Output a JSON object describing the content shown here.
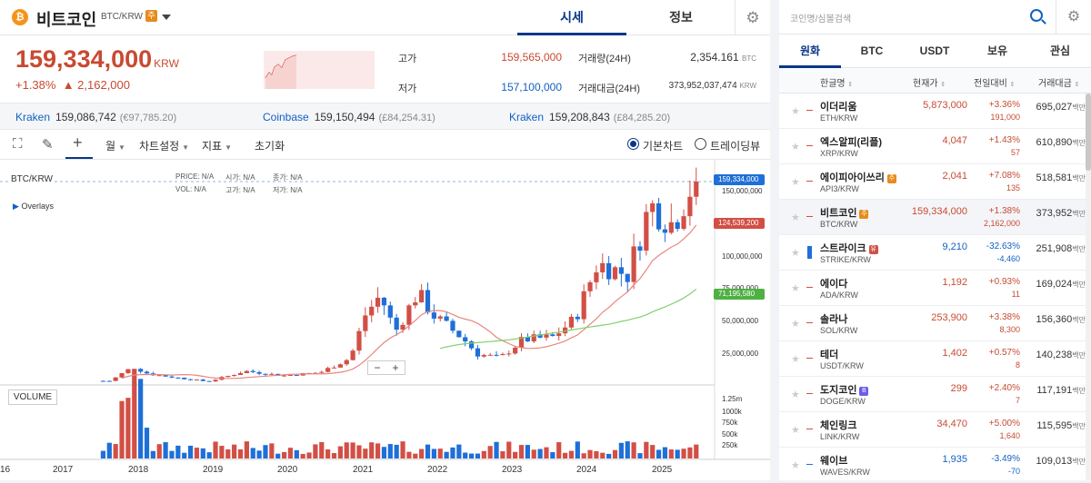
{
  "header": {
    "coin_icon_glyph": "₿",
    "coin_name": "비트코인",
    "symbol": "BTC/KRW",
    "warning_badge": "주",
    "tabs": [
      "시세",
      "정보"
    ]
  },
  "price": {
    "current": "159,334,000",
    "unit": "KRW",
    "change_rate": "+1.38%",
    "change_amount": "▲ 2,162,000",
    "high_label": "고가",
    "high": "159,565,000",
    "low_label": "저가",
    "low": "157,100,000",
    "volume_label": "거래량(24H)",
    "volume": "2,354.161",
    "volume_unit": "BTC",
    "trade_value_label": "거래대금(24H)",
    "trade_value": "373,952,037,474",
    "trade_value_unit": "KRW"
  },
  "exchanges": [
    {
      "name": "Kraken",
      "krw": "159,086,742",
      "ref": "(€97,785.20)"
    },
    {
      "name": "Coinbase",
      "krw": "159,150,494",
      "ref": "(£84,254.31)"
    },
    {
      "name": "Kraken",
      "krw": "159,208,843",
      "ref": "(£84,285.20)"
    }
  ],
  "toolbar": {
    "interval": "월",
    "chart_settings": "차트설정",
    "indicators": "지표",
    "reset": "초기화",
    "basic_chart": "기본차트",
    "tradingview": "트레이딩뷰"
  },
  "chart": {
    "symbol_label": "BTC/KRW",
    "overlays_label": "Overlays",
    "ohlc": {
      "price_label": "PRICE:",
      "price": "N/A",
      "open_label": "시가:",
      "open": "N/A",
      "close_label": "종가:",
      "close": "N/A",
      "vol_label": "VOL:",
      "vol": "N/A",
      "high_label": "고가:",
      "high": "N/A",
      "low_label": "저가:",
      "low": "N/A"
    },
    "volume_label": "VOLUME",
    "zoom_out": "−",
    "zoom_in": "+",
    "last_price_tag": "159,334,000",
    "ma1_tag": "124,539,200",
    "ma2_tag": "71,195,580",
    "colors": {
      "up": "#d24f45",
      "down": "#1e6fd8",
      "ma1": "#e8867e",
      "ma2": "#7fd26e",
      "last": "#1e6fd8"
    }
  },
  "chart_data": {
    "type": "candlestick",
    "title": "BTC/KRW",
    "ylim": [
      0,
      175000000
    ],
    "y_ticks": [
      "150,000,000",
      "100,000,000",
      "75,000,000",
      "50,000,000",
      "25,000,000"
    ],
    "volume_ticks": [
      "1.25m",
      "1000k",
      "750k",
      "500k",
      "250k"
    ],
    "x_ticks": [
      "16",
      "2017",
      "2018",
      "2019",
      "2020",
      "2021",
      "2022",
      "2023",
      "2024",
      "2025"
    ],
    "series_close": [
      {
        "x": "2017.7",
        "y": 4500000
      },
      {
        "x": "2017.9",
        "y": 12000000
      },
      {
        "x": "2018.0",
        "y": 15000000
      },
      {
        "x": "2018.2",
        "y": 10000000
      },
      {
        "x": "2018.5",
        "y": 7500000
      },
      {
        "x": "2019.0",
        "y": 4000000
      },
      {
        "x": "2019.5",
        "y": 12000000
      },
      {
        "x": "2020.0",
        "y": 8500000
      },
      {
        "x": "2020.5",
        "y": 11000000
      },
      {
        "x": "2020.9",
        "y": 22000000
      },
      {
        "x": "2021.1",
        "y": 55000000
      },
      {
        "x": "2021.3",
        "y": 70000000
      },
      {
        "x": "2021.5",
        "y": 42000000
      },
      {
        "x": "2021.8",
        "y": 72000000
      },
      {
        "x": "2022.0",
        "y": 55000000
      },
      {
        "x": "2022.4",
        "y": 37000000
      },
      {
        "x": "2022.6",
        "y": 25000000
      },
      {
        "x": "2022.9",
        "y": 22000000
      },
      {
        "x": "2023.2",
        "y": 36000000
      },
      {
        "x": "2023.6",
        "y": 38000000
      },
      {
        "x": "2023.9",
        "y": 52000000
      },
      {
        "x": "2024.2",
        "y": 95000000
      },
      {
        "x": "2024.6",
        "y": 86000000
      },
      {
        "x": "2024.9",
        "y": 140000000
      },
      {
        "x": "2025.2",
        "y": 125000000
      },
      {
        "x": "2025.5",
        "y": 159334000
      }
    ]
  },
  "market": {
    "search_placeholder": "코인명/심볼검색",
    "tabs": [
      "원화",
      "BTC",
      "USDT",
      "보유",
      "관심"
    ],
    "columns": [
      "한글명",
      "현재가",
      "전일대비",
      "거래대금"
    ],
    "rows": [
      {
        "name": "이더리움",
        "sym": "ETH/KRW",
        "badge": "",
        "price": "5,873,000",
        "rate": "+3.36%",
        "diff": "191,000",
        "vol": "695,027",
        "unit": "백만",
        "dir": "up"
      },
      {
        "name": "엑스알피(리플)",
        "sym": "XRP/KRW",
        "badge": "",
        "price": "4,047",
        "rate": "+1.43%",
        "diff": "57",
        "vol": "610,890",
        "unit": "백만",
        "dir": "up"
      },
      {
        "name": "에이피아이쓰리",
        "sym": "API3/KRW",
        "badge": "주",
        "price": "2,041",
        "rate": "+7.08%",
        "diff": "135",
        "vol": "518,581",
        "unit": "백만",
        "dir": "up"
      },
      {
        "name": "비트코인",
        "sym": "BTC/KRW",
        "badge": "주",
        "price": "159,334,000",
        "rate": "+1.38%",
        "diff": "2,162,000",
        "vol": "373,952",
        "unit": "백만",
        "dir": "up"
      },
      {
        "name": "스트라이크",
        "sym": "STRIKE/KRW",
        "badge": "유",
        "price": "9,210",
        "rate": "-32.63%",
        "diff": "-4,460",
        "vol": "251,908",
        "unit": "백만",
        "dir": "down"
      },
      {
        "name": "에이다",
        "sym": "ADA/KRW",
        "badge": "",
        "price": "1,192",
        "rate": "+0.93%",
        "diff": "11",
        "vol": "169,024",
        "unit": "백만",
        "dir": "up"
      },
      {
        "name": "솔라나",
        "sym": "SOL/KRW",
        "badge": "",
        "price": "253,900",
        "rate": "+3.38%",
        "diff": "8,300",
        "vol": "156,360",
        "unit": "백만",
        "dir": "up"
      },
      {
        "name": "테더",
        "sym": "USDT/KRW",
        "badge": "",
        "price": "1,402",
        "rate": "+0.57%",
        "diff": "8",
        "vol": "140,238",
        "unit": "백만",
        "dir": "up"
      },
      {
        "name": "도지코인",
        "sym": "DOGE/KRW",
        "badge": "B",
        "price": "299",
        "rate": "+2.40%",
        "diff": "7",
        "vol": "117,191",
        "unit": "백만",
        "dir": "up"
      },
      {
        "name": "체인링크",
        "sym": "LINK/KRW",
        "badge": "",
        "price": "34,470",
        "rate": "+5.00%",
        "diff": "1,640",
        "vol": "115,595",
        "unit": "백만",
        "dir": "up"
      },
      {
        "name": "웨이브",
        "sym": "WAVES/KRW",
        "badge": "",
        "price": "1,935",
        "rate": "-3.49%",
        "diff": "-70",
        "vol": "109,013",
        "unit": "백만",
        "dir": "down"
      }
    ]
  }
}
